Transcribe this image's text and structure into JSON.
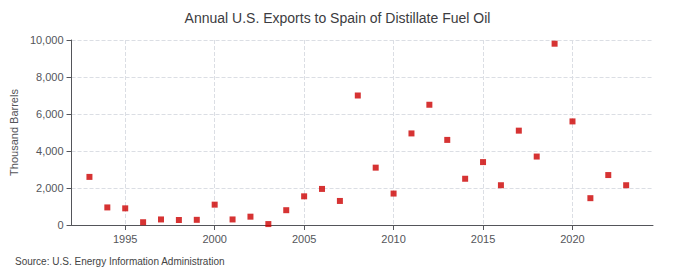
{
  "chart_data": {
    "type": "scatter",
    "title": "Annual U.S. Exports to Spain of Distillate Fuel Oil",
    "ylabel": "Thousand Barrels",
    "source": "Source: U.S. Energy Information Administration",
    "x": [
      1993,
      1994,
      1995,
      1996,
      1997,
      1998,
      1999,
      2000,
      2001,
      2002,
      2003,
      2004,
      2005,
      2006,
      2007,
      2008,
      2009,
      2010,
      2011,
      2012,
      2013,
      2014,
      2015,
      2016,
      2017,
      2018,
      2019,
      2020,
      2021,
      2022,
      2023
    ],
    "values": [
      2600,
      950,
      900,
      150,
      300,
      270,
      280,
      1100,
      300,
      450,
      50,
      800,
      1550,
      1950,
      1300,
      7000,
      3100,
      1700,
      4950,
      6500,
      4600,
      2500,
      3400,
      2150,
      5100,
      3700,
      9800,
      5600,
      1450,
      2700,
      2150
    ],
    "color": "#cc0000",
    "marker": "square",
    "xlim": [
      1992,
      2024.5
    ],
    "xticks": [
      1995,
      2000,
      2005,
      2010,
      2015,
      2020
    ],
    "ylim": [
      0,
      10000
    ],
    "yticks": [
      0,
      {
        "value": 2000,
        "label": "2,000"
      },
      {
        "value": 4000,
        "label": "4,000"
      },
      {
        "value": 6000,
        "label": "6,000"
      },
      {
        "value": 8000,
        "label": "8,000"
      },
      {
        "value": 10000,
        "label": "10,000"
      }
    ],
    "grid": true
  }
}
